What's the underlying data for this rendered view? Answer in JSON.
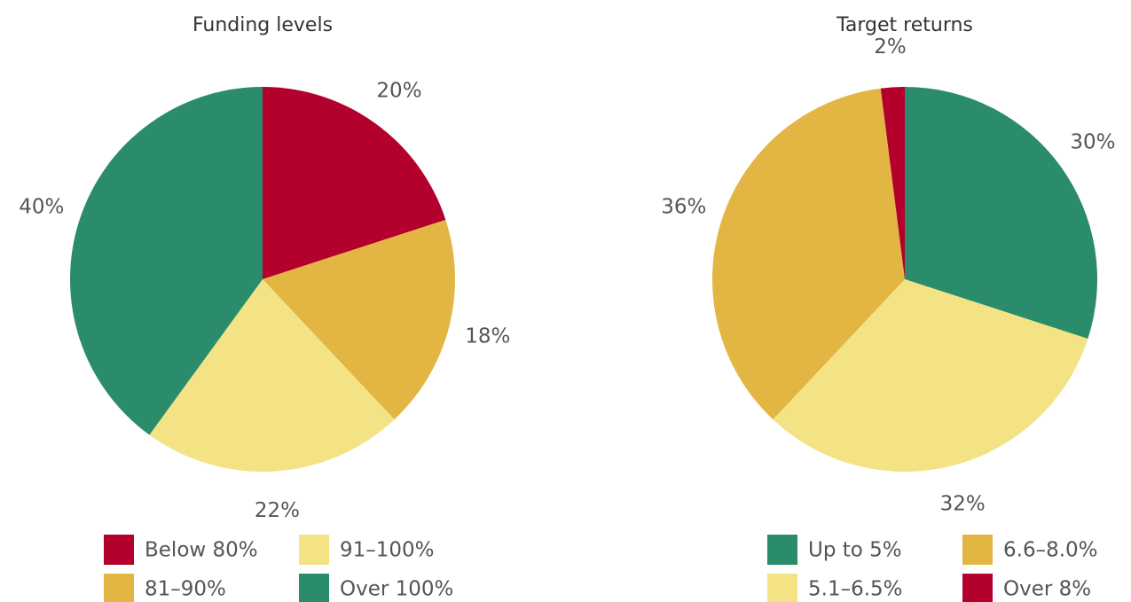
{
  "chart_data": [
    {
      "type": "pie",
      "title": "Funding levels",
      "categories": [
        "Below 80%",
        "81–90%",
        "91–100%",
        "Over 100%"
      ],
      "values": [
        20,
        18,
        22,
        40
      ],
      "value_labels": [
        "20%",
        "18%",
        "22%",
        "40%"
      ],
      "colors": [
        "#b3002d",
        "#e3b644",
        "#f3e384",
        "#2a8c6a"
      ]
    },
    {
      "type": "pie",
      "title": "Target returns",
      "categories": [
        "Up to 5%",
        "5.1–6.5%",
        "6.6–8.0%",
        "Over 8%"
      ],
      "values": [
        30,
        32,
        36,
        2
      ],
      "value_labels": [
        "30%",
        "32%",
        "36%",
        "2%"
      ],
      "colors": [
        "#2a8c6a",
        "#f3e384",
        "#e3b644",
        "#b3002d"
      ]
    }
  ]
}
